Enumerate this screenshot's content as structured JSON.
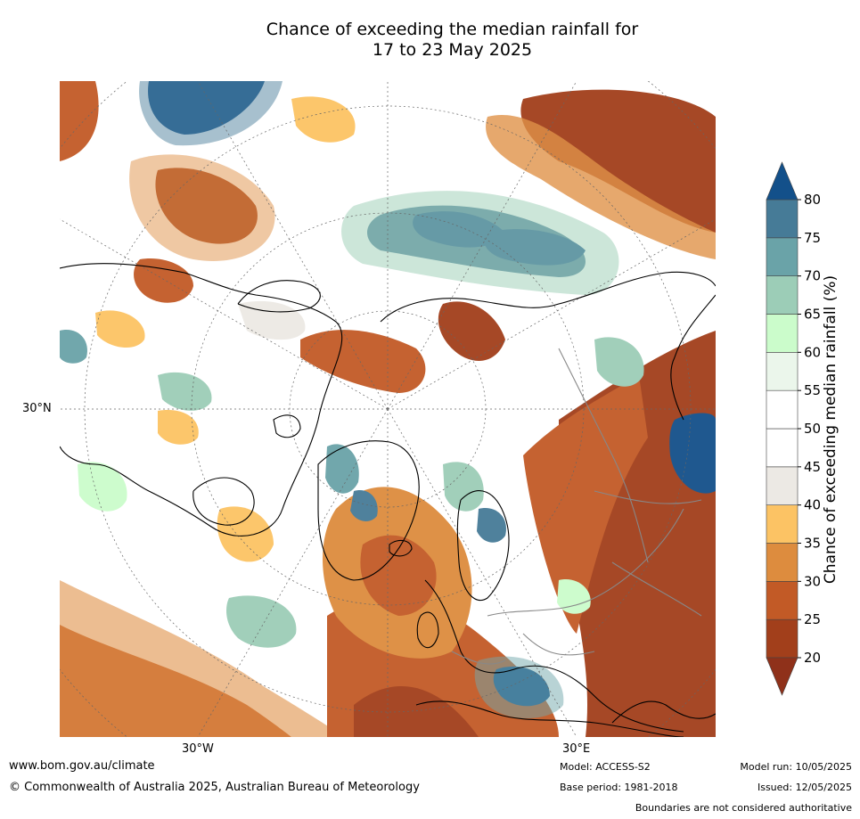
{
  "title": {
    "line1": "Chance of exceeding the median rainfall for",
    "line2": "17 to 23 May 2025"
  },
  "map": {
    "axis_labels": {
      "lat": "30°N",
      "lon_west": "30°W",
      "lon_east": "30°E"
    },
    "colors": {
      "ocean_bg": "#ffffff",
      "coast": "#000000",
      "borders": "#888888",
      "graticule": "#666666"
    }
  },
  "colorbar": {
    "label": "Chance of exceeding median rainfall (%)",
    "ticks": [
      "20",
      "25",
      "30",
      "35",
      "40",
      "45",
      "50",
      "55",
      "60",
      "65",
      "70",
      "75",
      "80"
    ],
    "bands": [
      {
        "from": 20,
        "to": 25,
        "color": "#a23f1b"
      },
      {
        "from": 25,
        "to": 30,
        "color": "#c25a26"
      },
      {
        "from": 30,
        "to": 35,
        "color": "#dd8c3e"
      },
      {
        "from": 35,
        "to": 40,
        "color": "#fcc364"
      },
      {
        "from": 40,
        "to": 45,
        "color": "#ece9e4"
      },
      {
        "from": 45,
        "to": 50,
        "color": "#ffffff"
      },
      {
        "from": 50,
        "to": 55,
        "color": "#ffffff"
      },
      {
        "from": 55,
        "to": 60,
        "color": "#ebf6eb"
      },
      {
        "from": 60,
        "to": 65,
        "color": "#cbfccb"
      },
      {
        "from": 65,
        "to": 70,
        "color": "#9ccdb7"
      },
      {
        "from": 70,
        "to": 75,
        "color": "#6aa3a8"
      },
      {
        "from": 75,
        "to": 80,
        "color": "#467b97"
      }
    ],
    "below_color": "#8f311a",
    "above_color": "#13508a"
  },
  "footer": {
    "website": "www.bom.gov.au/climate",
    "copyright": "© Commonwealth of Australia 2025, Australian Bureau of Meteorology",
    "model": "Model: ACCESS-S2",
    "base_period": "Base period: 1981-2018",
    "model_run": "Model run: 10/05/2025",
    "issued": "Issued: 12/05/2025",
    "boundaries_note": "Boundaries are not considered authoritative"
  }
}
